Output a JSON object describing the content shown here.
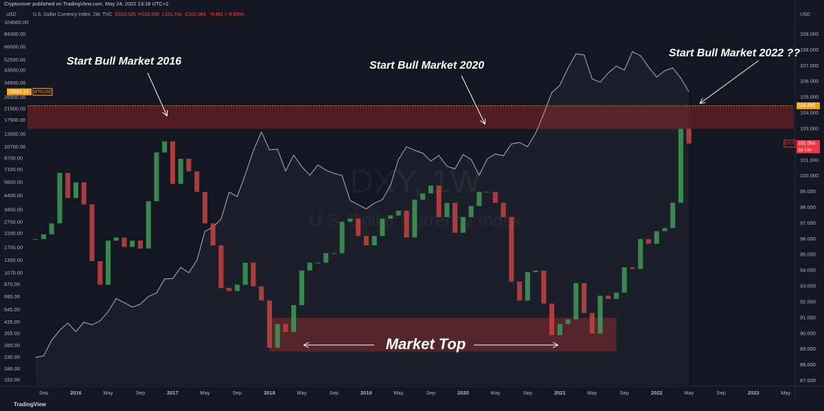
{
  "header": {
    "publisher": "Cryptorover published on TradingView.com, May 24, 2022 13:18 UTC+2",
    "symbol": "U.S. Dollar Currency Index, 1W, TVC",
    "legend_values": [
      "O103.025",
      "H103.050",
      "L101.741",
      "C102.064",
      "−0.961 (−0.93%)"
    ],
    "left_unit": "USD",
    "right_unit": "USD",
    "countdown": "3d 13h",
    "brand": "TradingView"
  },
  "chart_data": {
    "type": "candlestick",
    "watermark": [
      "DXY, 1W",
      "U.S. Dollar Currency Index"
    ],
    "annotations": [
      "Start Bull Market 2016",
      "Start Bull Market 2020",
      "Start Bull Market 2022 ??",
      "Market Top"
    ],
    "x": [
      "2015-08",
      "2015-09",
      "2015-10",
      "2015-11",
      "2015-12",
      "2016-01",
      "2016-02",
      "2016-03",
      "2016-04",
      "2016-05",
      "2016-06",
      "2016-07",
      "2016-08",
      "2016-09",
      "2016-10",
      "2016-11",
      "2016-12",
      "2017-01",
      "2017-02",
      "2017-03",
      "2017-04",
      "2017-05",
      "2017-06",
      "2017-07",
      "2017-08",
      "2017-09",
      "2017-10",
      "2017-11",
      "2017-12",
      "2018-01",
      "2018-02",
      "2018-03",
      "2018-04",
      "2018-05",
      "2018-06",
      "2018-07",
      "2018-08",
      "2018-09",
      "2018-10",
      "2018-11",
      "2018-12",
      "2019-01",
      "2019-02",
      "2019-03",
      "2019-04",
      "2019-05",
      "2019-06",
      "2019-07",
      "2019-08",
      "2019-09",
      "2019-10",
      "2019-11",
      "2019-12",
      "2020-01",
      "2020-02",
      "2020-03",
      "2020-04",
      "2020-05",
      "2020-06",
      "2020-07",
      "2020-08",
      "2020-09",
      "2020-10",
      "2020-11",
      "2020-12",
      "2021-01",
      "2021-02",
      "2021-03",
      "2021-04",
      "2021-05",
      "2021-06",
      "2021-07",
      "2021-08",
      "2021-09",
      "2021-10",
      "2021-11",
      "2021-12",
      "2022-01",
      "2022-02",
      "2022-03",
      "2022-04",
      "2022-05"
    ],
    "series": [
      {
        "name": "DXY",
        "axis": "y2",
        "up_color": "#3f9a58",
        "down_color": "#c8423f",
        "values": [
          96.0,
          96.3,
          97.0,
          100.2,
          98.6,
          99.6,
          98.2,
          94.6,
          93.1,
          95.9,
          96.1,
          95.5,
          95.9,
          95.4,
          98.4,
          101.5,
          102.2,
          99.5,
          101.1,
          100.3,
          99.0,
          97.0,
          95.6,
          92.9,
          92.7,
          93.1,
          94.5,
          93.0,
          92.1,
          89.1,
          90.6,
          90.1,
          91.8,
          94.0,
          94.5,
          94.5,
          95.1,
          95.1,
          97.1,
          97.3,
          96.2,
          95.6,
          96.2,
          97.3,
          97.5,
          97.8,
          96.1,
          98.5,
          98.9,
          99.4,
          97.4,
          98.3,
          96.4,
          97.4,
          98.1,
          99.0,
          99.0,
          98.3,
          97.4,
          93.3,
          92.1,
          93.9,
          94.0,
          91.9,
          89.9,
          90.6,
          90.9,
          93.2,
          91.3,
          90.0,
          92.4,
          92.2,
          92.6,
          94.2,
          94.1,
          96.0,
          95.7,
          96.5,
          96.7,
          98.3,
          103.0,
          102.064
        ]
      },
      {
        "name": "BTCUSD",
        "color": "#a3a6af",
        "values": [
          230,
          236,
          314,
          377,
          430,
          368,
          437,
          416,
          448,
          531,
          673,
          624,
          575,
          609,
          700,
          745,
          964,
          970,
          1190,
          1080,
          1350,
          2300,
          2480,
          2875,
          4700,
          4340,
          6470,
          10000,
          14150,
          10200,
          10300,
          6900,
          9250,
          7500,
          6400,
          7730,
          7030,
          6630,
          6370,
          4040,
          3740,
          3460,
          3850,
          4100,
          5320,
          8570,
          10800,
          10100,
          9600,
          8300,
          9200,
          7550,
          7200,
          9350,
          8550,
          6400,
          8630,
          9450,
          9140,
          11350,
          11650,
          10780,
          13800,
          19700,
          29000,
          33100,
          45200,
          58800,
          57700,
          37300,
          35000,
          41500,
          47100,
          43800,
          61300,
          57000,
          46300,
          38500,
          43200,
          45500,
          37700,
          29390.14
        ]
      }
    ],
    "high_marker": 104.465,
    "resistance_zone": [
      103.0,
      104.5
    ],
    "market_top_zone": {
      "x": [
        "2018-01",
        "2021-08"
      ],
      "y": [
        88.85,
        91.0
      ]
    },
    "xlim": [
      "2015-07",
      "2023-06"
    ],
    "xticks": [
      {
        "value": "2015-09",
        "label": "Sep"
      },
      {
        "value": "2016-01",
        "label": "2016"
      },
      {
        "value": "2016-05",
        "label": "May"
      },
      {
        "value": "2016-09",
        "label": "Sep"
      },
      {
        "value": "2017-01",
        "label": "2017"
      },
      {
        "value": "2017-05",
        "label": "May"
      },
      {
        "value": "2017-09",
        "label": "Sep"
      },
      {
        "value": "2018-01",
        "label": "2018"
      },
      {
        "value": "2018-05",
        "label": "May"
      },
      {
        "value": "2018-09",
        "label": "Sep"
      },
      {
        "value": "2019-01",
        "label": "2019"
      },
      {
        "value": "2019-05",
        "label": "May"
      },
      {
        "value": "2019-09",
        "label": "Sep"
      },
      {
        "value": "2020-01",
        "label": "2020"
      },
      {
        "value": "2020-05",
        "label": "May"
      },
      {
        "value": "2020-09",
        "label": "Sep"
      },
      {
        "value": "2021-01",
        "label": "2021"
      },
      {
        "value": "2021-05",
        "label": "May"
      },
      {
        "value": "2021-09",
        "label": "Sep"
      },
      {
        "value": "2022-01",
        "label": "2022"
      },
      {
        "value": "2022-05",
        "label": "May"
      },
      {
        "value": "2022-09",
        "label": "Sep"
      },
      {
        "value": "2023-01",
        "label": "2023"
      },
      {
        "value": "2023-05",
        "label": "May"
      }
    ],
    "ylim": [
      139,
      115000
    ],
    "log_scale": true,
    "yticks": [
      {
        "value": 104000,
        "label": "104000.00"
      },
      {
        "value": 84000,
        "label": "84000.00"
      },
      {
        "value": 66500,
        "label": "66500.00"
      },
      {
        "value": 52500,
        "label": "52500.00"
      },
      {
        "value": 43500,
        "label": "43500.00"
      },
      {
        "value": 34500,
        "label": "34500.00"
      },
      {
        "value": 26500,
        "label": "26500.00"
      },
      {
        "value": 21500,
        "label": "21500.00"
      },
      {
        "value": 17500,
        "label": "17500.00"
      },
      {
        "value": 13500,
        "label": "13500.00"
      },
      {
        "value": 10700,
        "label": "10700.00"
      },
      {
        "value": 8700,
        "label": "8700.00"
      },
      {
        "value": 7100,
        "label": "7100.00"
      },
      {
        "value": 5600,
        "label": "5600.00"
      },
      {
        "value": 4400,
        "label": "4400.00"
      },
      {
        "value": 3400,
        "label": "3400.00"
      },
      {
        "value": 2700,
        "label": "2700.00"
      },
      {
        "value": 2200,
        "label": "2200.00"
      },
      {
        "value": 1700,
        "label": "1700.00"
      },
      {
        "value": 1350,
        "label": "1350.00"
      },
      {
        "value": 1070,
        "label": "1070.00"
      },
      {
        "value": 870,
        "label": "870.00"
      },
      {
        "value": 695,
        "label": "695.00"
      },
      {
        "value": 545,
        "label": "545.00"
      },
      {
        "value": 435,
        "label": "435.00"
      },
      {
        "value": 355,
        "label": "355.00"
      },
      {
        "value": 285,
        "label": "285.00"
      },
      {
        "value": 230,
        "label": "230.00"
      },
      {
        "value": 186,
        "label": "186.00"
      },
      {
        "value": 152,
        "label": "152.00"
      }
    ],
    "y2lim": [
      86.74,
      110.09
    ],
    "y2ticks": [
      {
        "value": 109,
        "label": "109.000"
      },
      {
        "value": 108,
        "label": "108.000"
      },
      {
        "value": 107,
        "label": "107.000"
      },
      {
        "value": 106,
        "label": "106.000"
      },
      {
        "value": 105,
        "label": "105.000"
      },
      {
        "value": 104,
        "label": "104.000"
      },
      {
        "value": 103,
        "label": "103.000"
      },
      {
        "value": 102,
        "label": "102.000"
      },
      {
        "value": 101,
        "label": "101.000"
      },
      {
        "value": 100,
        "label": "100.000"
      },
      {
        "value": 99,
        "label": "99.000"
      },
      {
        "value": 98,
        "label": "98.000"
      },
      {
        "value": 97,
        "label": "97.000"
      },
      {
        "value": 96,
        "label": "96.000"
      },
      {
        "value": 95,
        "label": "95.000"
      },
      {
        "value": 94,
        "label": "94.000"
      },
      {
        "value": 93,
        "label": "93.000"
      },
      {
        "value": 92,
        "label": "92.000"
      },
      {
        "value": 91,
        "label": "91.000"
      },
      {
        "value": 90,
        "label": "90.000"
      },
      {
        "value": 89,
        "label": "89.000"
      },
      {
        "value": 88,
        "label": "88.000"
      },
      {
        "value": 87,
        "label": "87.000"
      }
    ],
    "grid": false
  }
}
